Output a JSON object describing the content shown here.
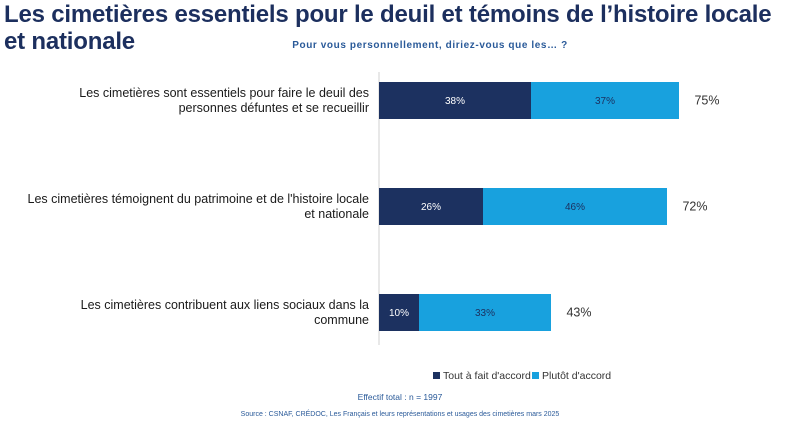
{
  "colors": {
    "series1": "#1c3160",
    "series2": "#18a1de",
    "title": "#1c2f5e",
    "subtitle": "#2a5a99"
  },
  "chart_data": {
    "type": "bar",
    "orientation": "horizontal",
    "stacked": true,
    "title": "Les cimetières essentiels pour le deuil et témoins de l’histoire locale et nationale",
    "subtitle": "Pour vous personnellement, diriez-vous que les… ?",
    "categories": [
      "Les cimetières sont essentiels pour faire le deuil des personnes défuntes et se recueillir",
      "Les cimetières témoignent du patrimoine et de l'histoire locale et nationale",
      "Les cimetières contribuent aux liens sociaux dans la commune"
    ],
    "category_lines": [
      [
        "Les cimetières sont essentiels pour faire le deuil des",
        "personnes défuntes et se recueillir"
      ],
      [
        "Les cimetières témoignent du patrimoine et de l'histoire locale",
        "et nationale"
      ],
      [
        "Les cimetières contribuent aux liens sociaux dans la",
        "commune"
      ]
    ],
    "series": [
      {
        "name": "Tout à fait d'accord",
        "values": [
          38,
          26,
          10
        ]
      },
      {
        "name": "Plutôt d'accord",
        "values": [
          37,
          46,
          33
        ]
      }
    ],
    "totals": [
      75,
      72,
      43
    ],
    "unit": "%",
    "xlim": [
      0,
      100
    ],
    "legend_position": "bottom"
  },
  "footer": {
    "effectif": "Effectif total : n = 1997",
    "source": "Source : CSNAF, CRÉDOC, Les Français et leurs représentations et usages des cimetières mars 2025"
  }
}
